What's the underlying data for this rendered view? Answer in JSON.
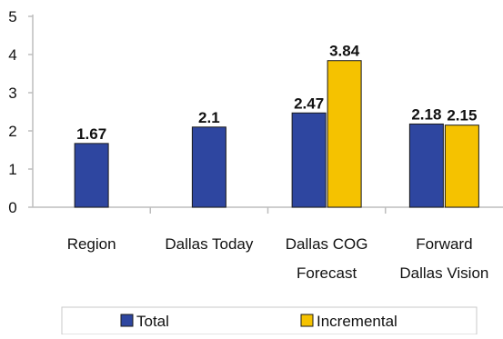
{
  "chart_data": {
    "type": "bar",
    "title": "",
    "xlabel": "",
    "ylabel": "",
    "ylim": [
      0,
      5
    ],
    "yticks": [
      "0",
      "1",
      "2",
      "3",
      "4",
      "5"
    ],
    "grid": false,
    "legend_position": "bottom",
    "categories": [
      [
        "Region"
      ],
      [
        "Dallas Today"
      ],
      [
        "Dallas COG",
        "Forecast"
      ],
      [
        "Forward",
        "Dallas Vision"
      ]
    ],
    "series": [
      {
        "name": "Total",
        "color": "#2E46A0",
        "values": [
          1.67,
          2.1,
          2.47,
          2.18
        ],
        "labels": [
          "1.67",
          "2.1",
          "2.47",
          "2.18"
        ]
      },
      {
        "name": "Incremental",
        "color": "#F5C200",
        "values": [
          null,
          null,
          3.84,
          2.15
        ],
        "labels": [
          "",
          "",
          "3.84",
          "2.15"
        ]
      }
    ]
  }
}
